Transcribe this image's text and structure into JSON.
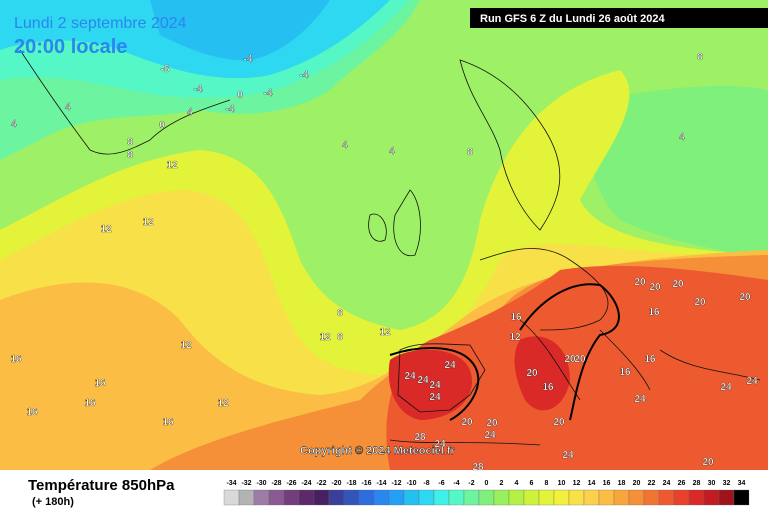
{
  "header": {
    "date": "Lundi 2 septembre 2024",
    "time": "20:00 locale",
    "run": "Run GFS 6 Z du Lundi 26 août 2024"
  },
  "map": {
    "copyright": "Copyright © 2024 Meteociel.fr",
    "contour_labels": [
      -8,
      -4,
      -4,
      -4,
      -4,
      0,
      -4,
      0,
      4,
      4,
      4,
      8,
      8,
      12,
      4,
      12,
      12,
      4,
      4,
      8,
      8,
      8,
      12,
      12,
      12,
      16,
      16,
      16,
      16,
      16,
      16,
      12,
      8,
      12,
      16,
      20,
      20,
      20,
      20,
      16,
      20,
      20,
      16,
      24,
      24,
      24,
      24,
      24,
      20,
      20,
      20,
      16,
      24,
      24,
      24,
      28,
      24,
      24,
      28,
      20,
      20,
      24,
      20
    ]
  },
  "footer": {
    "title": "Température 850hPa",
    "lead": "(+ 180h)"
  },
  "legend": {
    "labels": [
      -34,
      -32,
      -30,
      -28,
      -26,
      -24,
      -22,
      -20,
      -18,
      -16,
      -14,
      -12,
      -10,
      -8,
      -6,
      -4,
      -2,
      0,
      2,
      4,
      6,
      8,
      10,
      12,
      14,
      16,
      18,
      20,
      22,
      24,
      26,
      28,
      30,
      32,
      34
    ],
    "colors": [
      "#d9d9d9",
      "#b3b3b3",
      "#9c7da6",
      "#8a5a93",
      "#743d7c",
      "#5c2a6a",
      "#462060",
      "#3a3f99",
      "#3355bb",
      "#2c6ee0",
      "#2a86f0",
      "#23a0f5",
      "#26bff2",
      "#2ed8f0",
      "#3ef0e5",
      "#55f7c6",
      "#6cf4a0",
      "#7ff07b",
      "#98f05c",
      "#b4f046",
      "#cdf23c",
      "#e2f33a",
      "#f2f03c",
      "#f8e048",
      "#fbd04a",
      "#fbbd44",
      "#f8a53c",
      "#f58f38",
      "#f27434",
      "#ee5a30",
      "#e8412c",
      "#d92a28",
      "#c01c22",
      "#9e141c",
      "#000000"
    ]
  }
}
